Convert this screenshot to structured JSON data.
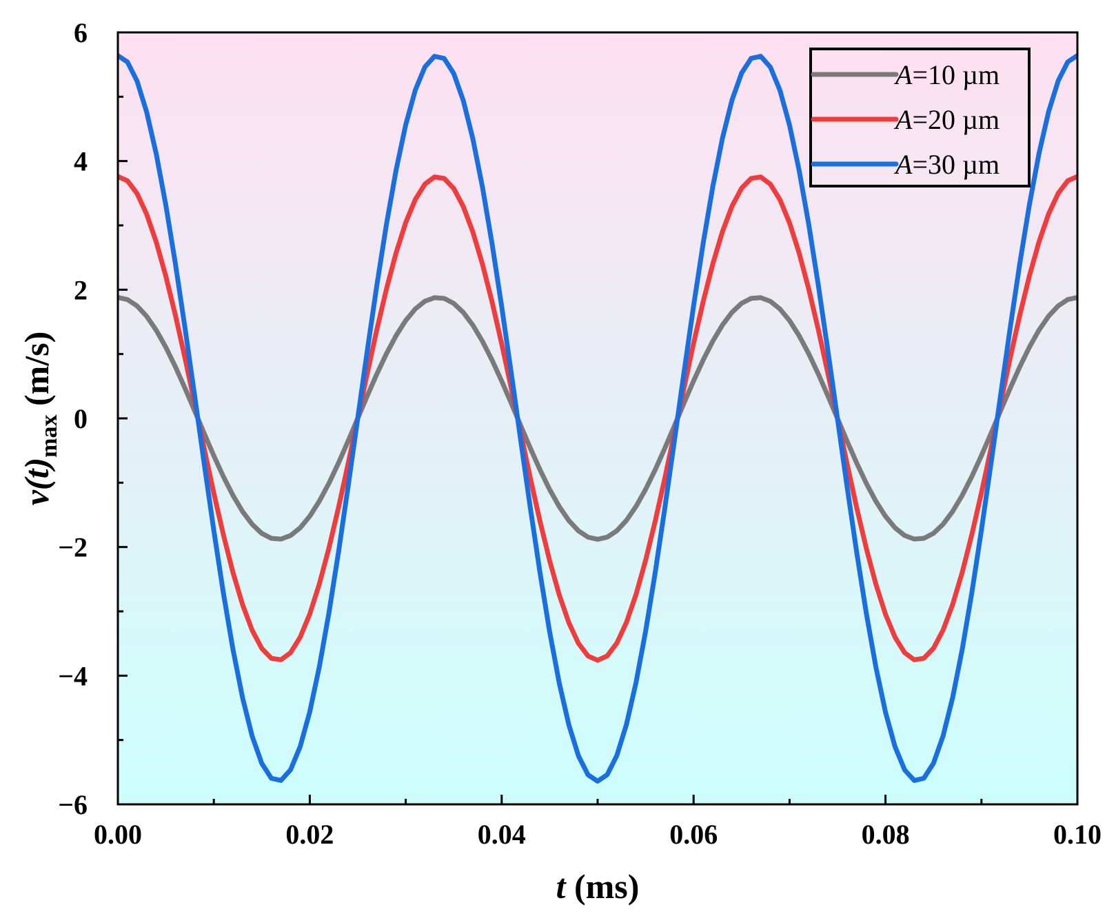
{
  "chart_data": {
    "type": "line",
    "title": "",
    "xlabel": {
      "var": "t",
      "unit": " (ms)"
    },
    "ylabel": {
      "var_open": "v(",
      "var_mid": "t",
      "var_close": ")",
      "sub": "max",
      "unit": " (m/s)"
    },
    "xlim": [
      0,
      0.1
    ],
    "ylim": [
      -6,
      6
    ],
    "x_ticks": [
      {
        "value": 0.0,
        "label": "0.00"
      },
      {
        "value": 0.02,
        "label": "0.02"
      },
      {
        "value": 0.04,
        "label": "0.04"
      },
      {
        "value": 0.06,
        "label": "0.06"
      },
      {
        "value": 0.08,
        "label": "0.08"
      },
      {
        "value": 0.1,
        "label": "0.10"
      }
    ],
    "y_ticks": [
      {
        "value": 6,
        "label": "6"
      },
      {
        "value": 4,
        "label": "4"
      },
      {
        "value": 2,
        "label": "2"
      },
      {
        "value": 0,
        "label": "0"
      },
      {
        "value": -2,
        "label": "−2"
      },
      {
        "value": -4,
        "label": "−4"
      },
      {
        "value": -6,
        "label": "−6"
      }
    ],
    "function": "v = amplitude * cos(2*pi*t/period)",
    "period_ms": 0.03333,
    "sample_step_ms": 0.001,
    "legend_position": "top-right",
    "background_gradient": {
      "top": "#ffe0f0",
      "bottom": "#ccfffc"
    },
    "series": [
      {
        "name_prefix": "A",
        "name_suffix": "=10 µm",
        "amplitude": 1.88,
        "color": "#7a7a7a"
      },
      {
        "name_prefix": "A",
        "name_suffix": "=20 µm",
        "amplitude": 3.76,
        "color": "#f03c3c"
      },
      {
        "name_prefix": "A",
        "name_suffix": "=30 µm",
        "amplitude": 5.64,
        "color": "#1a6fe0"
      }
    ]
  }
}
